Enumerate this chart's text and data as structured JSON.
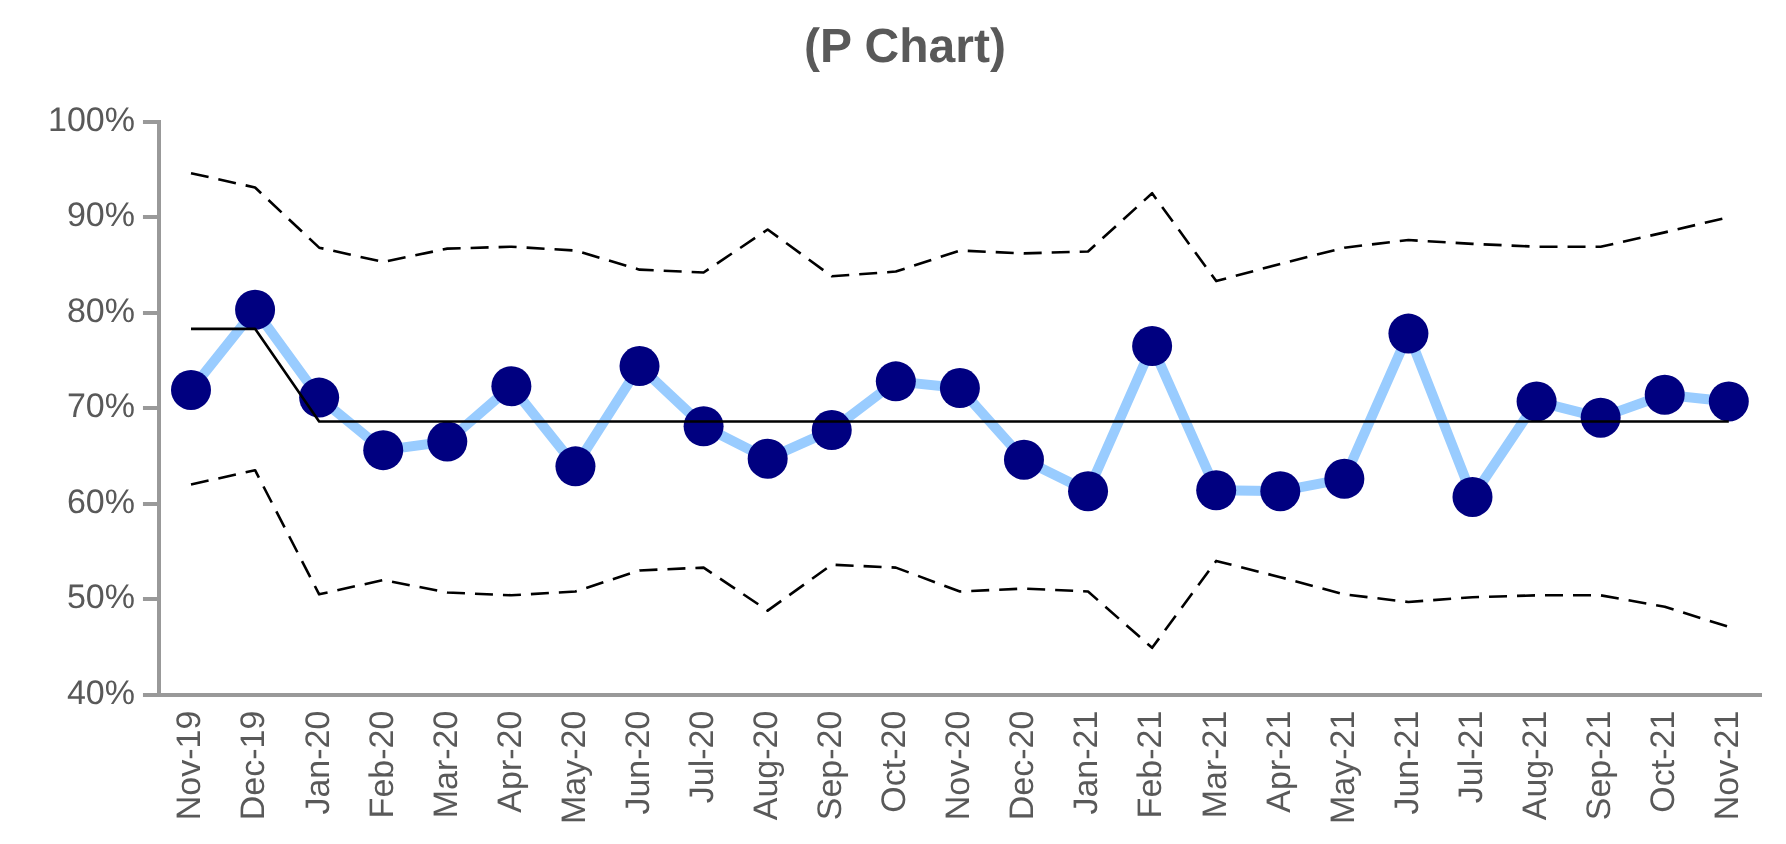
{
  "chart_data": {
    "type": "line",
    "title": "(P Chart)",
    "categories": [
      "Nov-19",
      "Dec-19",
      "Jan-20",
      "Feb-20",
      "Mar-20",
      "Apr-20",
      "May-20",
      "Jun-20",
      "Jul-20",
      "Aug-20",
      "Sep-20",
      "Oct-20",
      "Nov-20",
      "Dec-20",
      "Jan-21",
      "Feb-21",
      "Mar-21",
      "Apr-21",
      "May-21",
      "Jun-21",
      "Jul-21",
      "Aug-21",
      "Sep-21",
      "Oct-21",
      "Nov-21"
    ],
    "series": [
      {
        "color": "#000000",
        "line_style": "dashed",
        "marker": "none",
        "values": [
          94.6,
          93.1,
          86.8,
          85.3,
          86.7,
          86.9,
          86.5,
          84.5,
          84.2,
          88.7,
          83.8,
          84.3,
          86.5,
          86.2,
          86.4,
          92.5,
          83.3,
          85.1,
          86.8,
          87.6,
          87.2,
          86.9,
          86.9,
          88.4,
          90.0
        ]
      },
      {
        "color": "#000000",
        "line_style": "solid",
        "marker": "none",
        "values": [
          78.3,
          78.3,
          68.6,
          68.6,
          68.6,
          68.6,
          68.6,
          68.6,
          68.6,
          68.6,
          68.6,
          68.6,
          68.6,
          68.6,
          68.6,
          68.6,
          68.6,
          68.6,
          68.6,
          68.6,
          68.6,
          68.6,
          68.6,
          68.6,
          68.6
        ]
      },
      {
        "color": "#000000",
        "line_style": "dashed",
        "marker": "none",
        "values": [
          62.0,
          63.5,
          50.5,
          52.0,
          50.7,
          50.4,
          50.8,
          53.0,
          53.3,
          48.8,
          53.6,
          53.3,
          50.8,
          51.1,
          50.8,
          44.9,
          54.0,
          52.3,
          50.5,
          49.7,
          50.2,
          50.4,
          50.4,
          49.2,
          47.1
        ]
      },
      {
        "color": "#99ccff",
        "colors": [
          "#000080",
          "#000080",
          "#000080",
          "#000080",
          "#000080",
          "#000080",
          "#000080",
          "#000080",
          "#000080",
          "#000080",
          "#000080",
          "#000080",
          "#000080",
          "#000080",
          "#000080",
          "#000080",
          "#000080",
          "#000080",
          "#000080",
          "#000080",
          "#000080",
          "#000080",
          "#000080",
          "#000080",
          "#000080"
        ],
        "line_style": "solid",
        "marker": "circle",
        "values": [
          71.9,
          80.3,
          71.1,
          65.6,
          66.5,
          72.3,
          63.9,
          74.4,
          68.1,
          64.7,
          67.7,
          72.8,
          72.1,
          64.6,
          61.3,
          76.5,
          61.4,
          61.3,
          62.6,
          77.8,
          60.7,
          70.7,
          69.0,
          71.4,
          70.7
        ]
      }
    ],
    "ylim": [
      40,
      100
    ],
    "yticks": [
      {
        "value": 40,
        "label": "40%"
      },
      {
        "value": 50,
        "label": "50%"
      },
      {
        "value": 60,
        "label": "60%"
      },
      {
        "value": 70,
        "label": "70%"
      },
      {
        "value": 80,
        "label": "80%"
      },
      {
        "value": 90,
        "label": "90%"
      },
      {
        "value": 100,
        "label": "100%"
      }
    ],
    "grid": false,
    "legend": false
  }
}
